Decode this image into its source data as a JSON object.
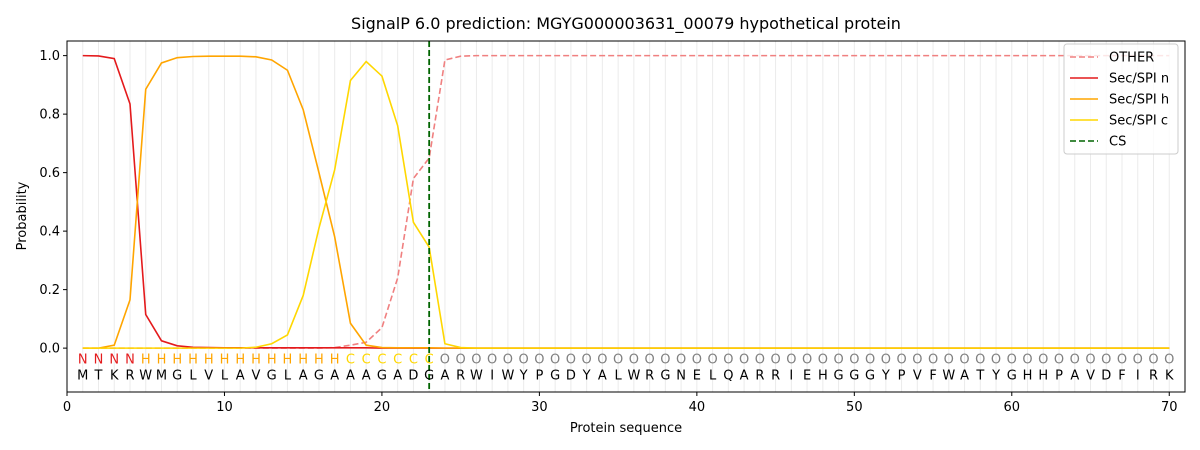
{
  "chart_data": {
    "type": "line",
    "title": "SignalP 6.0 prediction: MGYG000003631_00079 hypothetical protein",
    "xlabel": "Protein sequence",
    "ylabel": "Probability",
    "xlim": [
      0,
      71
    ],
    "ylim": [
      -0.15,
      1.05
    ],
    "xticks": [
      0,
      10,
      20,
      30,
      40,
      50,
      60,
      70
    ],
    "yticks": [
      0.0,
      0.2,
      0.4,
      0.6,
      0.8,
      1.0
    ],
    "xtick_labels": [
      "0",
      "10",
      "20",
      "30",
      "40",
      "50",
      "60",
      "70"
    ],
    "ytick_labels": [
      "0.0",
      "0.2",
      "0.4",
      "0.6",
      "0.8",
      "1.0"
    ],
    "legend_position": "top-right",
    "sequence": [
      "M",
      "T",
      "K",
      "R",
      "W",
      "M",
      "G",
      "L",
      "V",
      "L",
      "A",
      "V",
      "G",
      "L",
      "A",
      "G",
      "A",
      "A",
      "A",
      "G",
      "A",
      "D",
      "G",
      "A",
      "R",
      "W",
      "I",
      "W",
      "Y",
      "P",
      "G",
      "D",
      "Y",
      "A",
      "L",
      "W",
      "R",
      "G",
      "N",
      "E",
      "L",
      "Q",
      "A",
      "R",
      "R",
      "I",
      "E",
      "H",
      "G",
      "G",
      "G",
      "Y",
      "P",
      "V",
      "F",
      "W",
      "A",
      "T",
      "Y",
      "G",
      "H",
      "H",
      "P",
      "A",
      "V",
      "D",
      "F",
      "I",
      "R",
      "K"
    ],
    "regions": [
      "N",
      "N",
      "N",
      "N",
      "H",
      "H",
      "H",
      "H",
      "H",
      "H",
      "H",
      "H",
      "H",
      "H",
      "H",
      "H",
      "H",
      "C",
      "C",
      "C",
      "C",
      "C",
      "C",
      "O",
      "O",
      "O",
      "O",
      "O",
      "O",
      "O",
      "O",
      "O",
      "O",
      "O",
      "O",
      "O",
      "O",
      "O",
      "O",
      "O",
      "O",
      "O",
      "O",
      "O",
      "O",
      "O",
      "O",
      "O",
      "O",
      "O",
      "O",
      "O",
      "O",
      "O",
      "O",
      "O",
      "O",
      "O",
      "O",
      "O",
      "O",
      "O",
      "O",
      "O",
      "O",
      "O",
      "O",
      "O",
      "O",
      "O"
    ],
    "region_colors": {
      "N": "#e41a1c",
      "H": "#ffa500",
      "C": "#ffd700",
      "O": "#808080"
    },
    "cs_position": 23,
    "series": [
      {
        "name": "OTHER",
        "color": "#f08080",
        "dash": true,
        "values": [
          0,
          0,
          0,
          0,
          0,
          0,
          0,
          0,
          0,
          0,
          0,
          0,
          0,
          0,
          0,
          0,
          0.002,
          0.01,
          0.02,
          0.07,
          0.24,
          0.58,
          0.65,
          0.985,
          0.998,
          1,
          1,
          1,
          1,
          1,
          1,
          1,
          1,
          1,
          1,
          1,
          1,
          1,
          1,
          1,
          1,
          1,
          1,
          1,
          1,
          1,
          1,
          1,
          1,
          1,
          1,
          1,
          1,
          1,
          1,
          1,
          1,
          1,
          1,
          1,
          1,
          1,
          1,
          1,
          1,
          1,
          1,
          1,
          1,
          1
        ]
      },
      {
        "name": "Sec/SPI n",
        "color": "#e41a1c",
        "dash": false,
        "values": [
          1.0,
          0.999,
          0.99,
          0.835,
          0.115,
          0.025,
          0.008,
          0.003,
          0.002,
          0.001,
          0.001,
          0.001,
          0.001,
          0.001,
          0.001,
          0.001,
          0.001,
          0.001,
          0.001,
          0,
          0,
          0,
          0,
          0,
          0,
          0,
          0,
          0,
          0,
          0,
          0,
          0,
          0,
          0,
          0,
          0,
          0,
          0,
          0,
          0,
          0,
          0,
          0,
          0,
          0,
          0,
          0,
          0,
          0,
          0,
          0,
          0,
          0,
          0,
          0,
          0,
          0,
          0,
          0,
          0,
          0,
          0,
          0,
          0,
          0,
          0,
          0,
          0,
          0,
          0
        ]
      },
      {
        "name": "Sec/SPI h",
        "color": "#ffa500",
        "dash": false,
        "values": [
          0,
          0,
          0.01,
          0.165,
          0.885,
          0.975,
          0.993,
          0.997,
          0.998,
          0.998,
          0.998,
          0.996,
          0.985,
          0.95,
          0.815,
          0.6,
          0.38,
          0.085,
          0.01,
          0.002,
          0.001,
          0.001,
          0.001,
          0,
          0,
          0,
          0,
          0,
          0,
          0,
          0,
          0,
          0,
          0,
          0,
          0,
          0,
          0,
          0,
          0,
          0,
          0,
          0,
          0,
          0,
          0,
          0,
          0,
          0,
          0,
          0,
          0,
          0,
          0,
          0,
          0,
          0,
          0,
          0,
          0,
          0,
          0,
          0,
          0,
          0,
          0,
          0,
          0,
          0,
          0
        ]
      },
      {
        "name": "Sec/SPI c",
        "color": "#ffd700",
        "dash": false,
        "values": [
          0,
          0,
          0,
          0,
          0,
          0,
          0,
          0,
          0,
          0,
          0,
          0.003,
          0.015,
          0.045,
          0.18,
          0.41,
          0.61,
          0.915,
          0.98,
          0.93,
          0.76,
          0.43,
          0.345,
          0.015,
          0.002,
          0,
          0,
          0,
          0,
          0,
          0,
          0,
          0,
          0,
          0,
          0,
          0,
          0,
          0,
          0,
          0,
          0,
          0,
          0,
          0,
          0,
          0,
          0,
          0,
          0,
          0,
          0,
          0,
          0,
          0,
          0,
          0,
          0,
          0,
          0,
          0,
          0,
          0,
          0,
          0,
          0,
          0,
          0,
          0,
          0
        ]
      }
    ],
    "cs_series": {
      "name": "CS",
      "color": "#006400"
    }
  }
}
